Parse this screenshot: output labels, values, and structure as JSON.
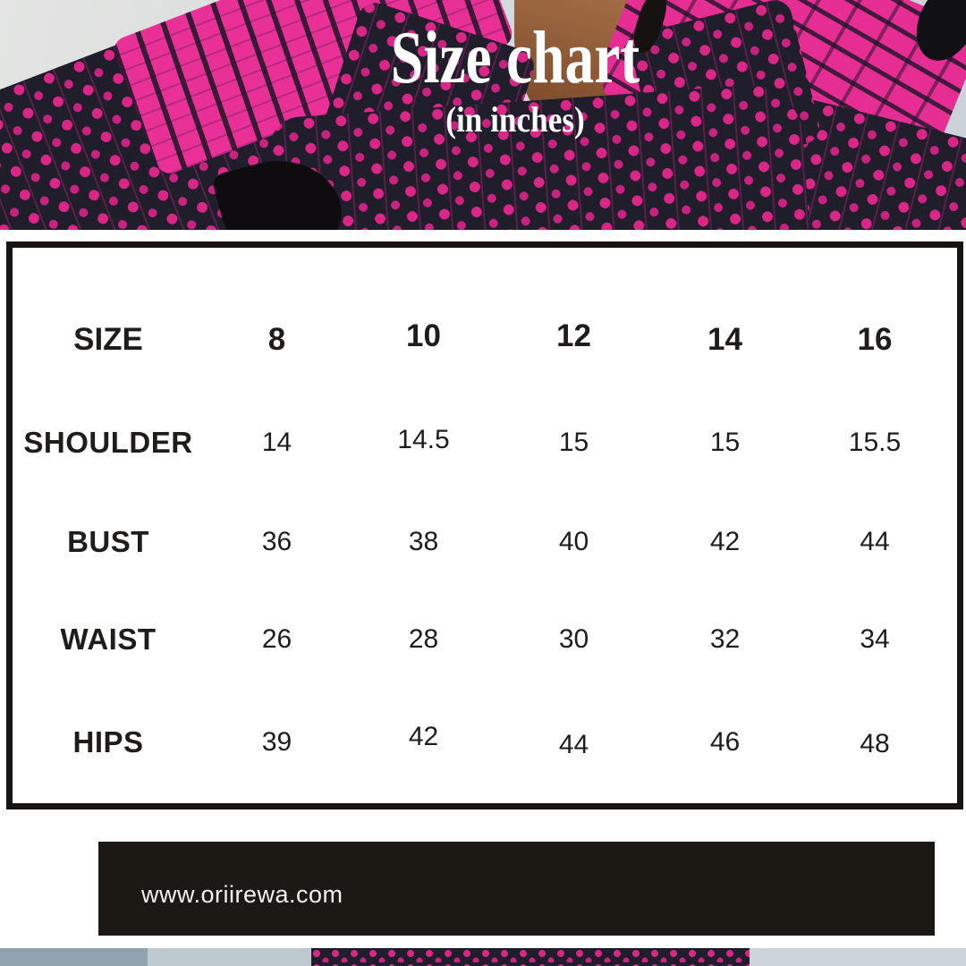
{
  "header": {
    "title": "Size chart",
    "subtitle": "(in inches)"
  },
  "footer": {
    "website": "www.oriirewa.com"
  },
  "chart_data": {
    "type": "table",
    "title": "Size chart",
    "subtitle": "(in inches)",
    "unit": "inches",
    "columns": [
      "SIZE",
      "8",
      "10",
      "12",
      "14",
      "16"
    ],
    "rows": [
      {
        "label": "SHOULDER",
        "values": [
          "14",
          "14.5",
          "15",
          "15",
          "15.5"
        ]
      },
      {
        "label": "BUST",
        "values": [
          "36",
          "38",
          "40",
          "42",
          "44"
        ]
      },
      {
        "label": "WAIST",
        "values": [
          "26",
          "28",
          "30",
          "32",
          "34"
        ]
      },
      {
        "label": "HIPS",
        "values": [
          "39",
          "42",
          "44",
          "46",
          "48"
        ]
      }
    ]
  },
  "colors": {
    "accent_pink": "#e52d93",
    "garment_navy": "#211e2c",
    "footer_bar": "#1c1814",
    "box_border": "#171412",
    "title_text": "#fdfdfd",
    "table_text": "#1f1c1c"
  }
}
